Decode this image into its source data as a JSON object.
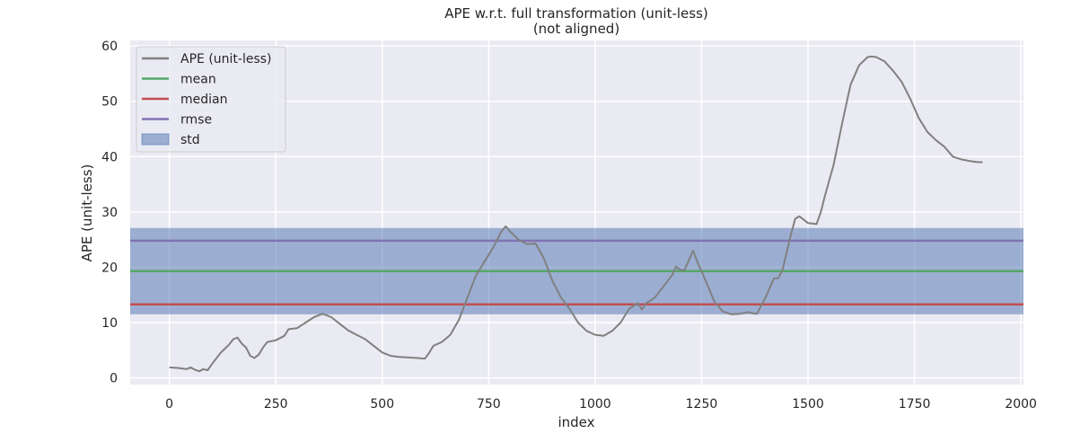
{
  "chart_data": {
    "type": "line",
    "title": "APE w.r.t. full transformation (unit-less)",
    "subtitle": "(not aligned)",
    "xlabel": "index",
    "ylabel": "APE (unit-less)",
    "xlim": [
      -92,
      2006
    ],
    "ylim": [
      -1.2,
      61
    ],
    "xticks": [
      0,
      250,
      500,
      750,
      1000,
      1250,
      1500,
      1750,
      2000
    ],
    "yticks": [
      0,
      10,
      20,
      30,
      40,
      50,
      60
    ],
    "grid": true,
    "legend_position": "top-left",
    "series": [
      {
        "name": "APE (unit-less)",
        "color": "#808080",
        "x": [
          0,
          20,
          40,
          50,
          60,
          70,
          80,
          90,
          100,
          120,
          140,
          150,
          160,
          170,
          180,
          190,
          200,
          210,
          220,
          230,
          250,
          270,
          280,
          300,
          320,
          340,
          360,
          370,
          380,
          400,
          420,
          440,
          460,
          480,
          500,
          520,
          540,
          560,
          580,
          600,
          610,
          620,
          640,
          660,
          680,
          700,
          720,
          740,
          760,
          780,
          790,
          800,
          820,
          840,
          860,
          870,
          880,
          900,
          920,
          930,
          940,
          960,
          980,
          1000,
          1020,
          1040,
          1060,
          1080,
          1100,
          1110,
          1120,
          1140,
          1160,
          1180,
          1190,
          1200,
          1210,
          1230,
          1240,
          1260,
          1280,
          1300,
          1320,
          1340,
          1360,
          1370,
          1380,
          1400,
          1420,
          1430,
          1440,
          1460,
          1470,
          1480,
          1500,
          1520,
          1530,
          1540,
          1560,
          1580,
          1600,
          1620,
          1640,
          1650,
          1660,
          1680,
          1700,
          1720,
          1740,
          1760,
          1780,
          1800,
          1820,
          1840,
          1860,
          1880,
          1900,
          1910
        ],
        "values": [
          1.9,
          1.8,
          1.6,
          1.9,
          1.5,
          1.2,
          1.6,
          1.4,
          2.5,
          4.5,
          6.0,
          7.0,
          7.3,
          6.2,
          5.5,
          4.0,
          3.6,
          4.2,
          5.5,
          6.5,
          6.8,
          7.6,
          8.8,
          9.0,
          10.0,
          11.0,
          11.6,
          11.3,
          11.0,
          9.8,
          8.6,
          7.8,
          7.0,
          5.8,
          4.6,
          4.0,
          3.8,
          3.7,
          3.6,
          3.5,
          4.5,
          5.8,
          6.5,
          7.8,
          10.5,
          14.5,
          18.5,
          21.0,
          23.5,
          26.5,
          27.4,
          26.5,
          25.0,
          24.2,
          24.3,
          23.0,
          21.5,
          17.5,
          14.5,
          13.5,
          12.5,
          10.0,
          8.5,
          7.8,
          7.6,
          8.5,
          10.0,
          12.5,
          13.5,
          12.4,
          13.5,
          14.5,
          16.5,
          18.5,
          20.1,
          19.5,
          19.5,
          23.0,
          21.0,
          17.5,
          13.8,
          12.0,
          11.5,
          11.6,
          11.9,
          11.7,
          11.6,
          14.5,
          18.0,
          18.0,
          19.5,
          26.0,
          28.8,
          29.2,
          28.0,
          27.8,
          30.0,
          33.0,
          38.5,
          46.0,
          53.0,
          56.5,
          58.0,
          58.1,
          58.0,
          57.2,
          55.5,
          53.5,
          50.5,
          47.0,
          44.5,
          43.0,
          41.8,
          40.0,
          39.5,
          39.2,
          39.0,
          39.0
        ]
      }
    ],
    "stats": {
      "mean": 19.3,
      "median": 13.3,
      "rmse": 24.8,
      "std": 7.8
    },
    "legend": [
      {
        "label": "APE (unit-less)",
        "kind": "line",
        "color": "#808080"
      },
      {
        "label": "mean",
        "kind": "line",
        "color": "#55a868"
      },
      {
        "label": "median",
        "kind": "line",
        "color": "#c44e52"
      },
      {
        "label": "rmse",
        "kind": "line",
        "color": "#8172b2"
      },
      {
        "label": "std",
        "kind": "patch",
        "color": "#4c72b0"
      }
    ],
    "colors": {
      "plot_background": "#eaeaf2",
      "grid": "#ffffff",
      "mean": "#55a868",
      "median": "#c44e52",
      "rmse": "#8172b2",
      "std_band": "#4c72b0"
    }
  }
}
